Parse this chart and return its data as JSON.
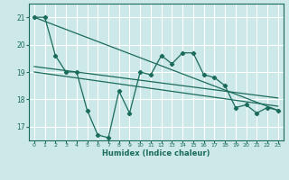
{
  "xlabel": "Humidex (Indice chaleur)",
  "background_color": "#cce8e8",
  "grid_color": "#ffffff",
  "line_color": "#1a6b5a",
  "xlim": [
    -0.5,
    23.5
  ],
  "ylim": [
    16.5,
    21.5
  ],
  "yticks": [
    17,
    18,
    19,
    20,
    21
  ],
  "xticks": [
    0,
    1,
    2,
    3,
    4,
    5,
    6,
    7,
    8,
    9,
    10,
    11,
    12,
    13,
    14,
    15,
    16,
    17,
    18,
    19,
    20,
    21,
    22,
    23
  ],
  "series1_x": [
    0,
    1,
    2,
    3,
    4,
    5,
    6,
    7,
    8,
    9,
    10,
    11,
    12,
    13,
    14,
    15,
    16,
    17,
    18,
    19,
    20,
    21,
    22,
    23
  ],
  "series1_y": [
    21.0,
    21.0,
    19.6,
    19.0,
    19.0,
    17.6,
    16.7,
    16.6,
    18.3,
    17.5,
    19.0,
    18.9,
    19.6,
    19.3,
    19.7,
    19.7,
    18.9,
    18.8,
    18.5,
    17.7,
    17.8,
    17.5,
    17.7,
    17.6
  ],
  "line1_x": [
    0,
    23
  ],
  "line1_y": [
    21.0,
    17.6
  ],
  "line2_x": [
    0,
    23
  ],
  "line2_y": [
    19.0,
    17.75
  ],
  "line3_x": [
    0,
    23
  ],
  "line3_y": [
    19.2,
    18.05
  ]
}
